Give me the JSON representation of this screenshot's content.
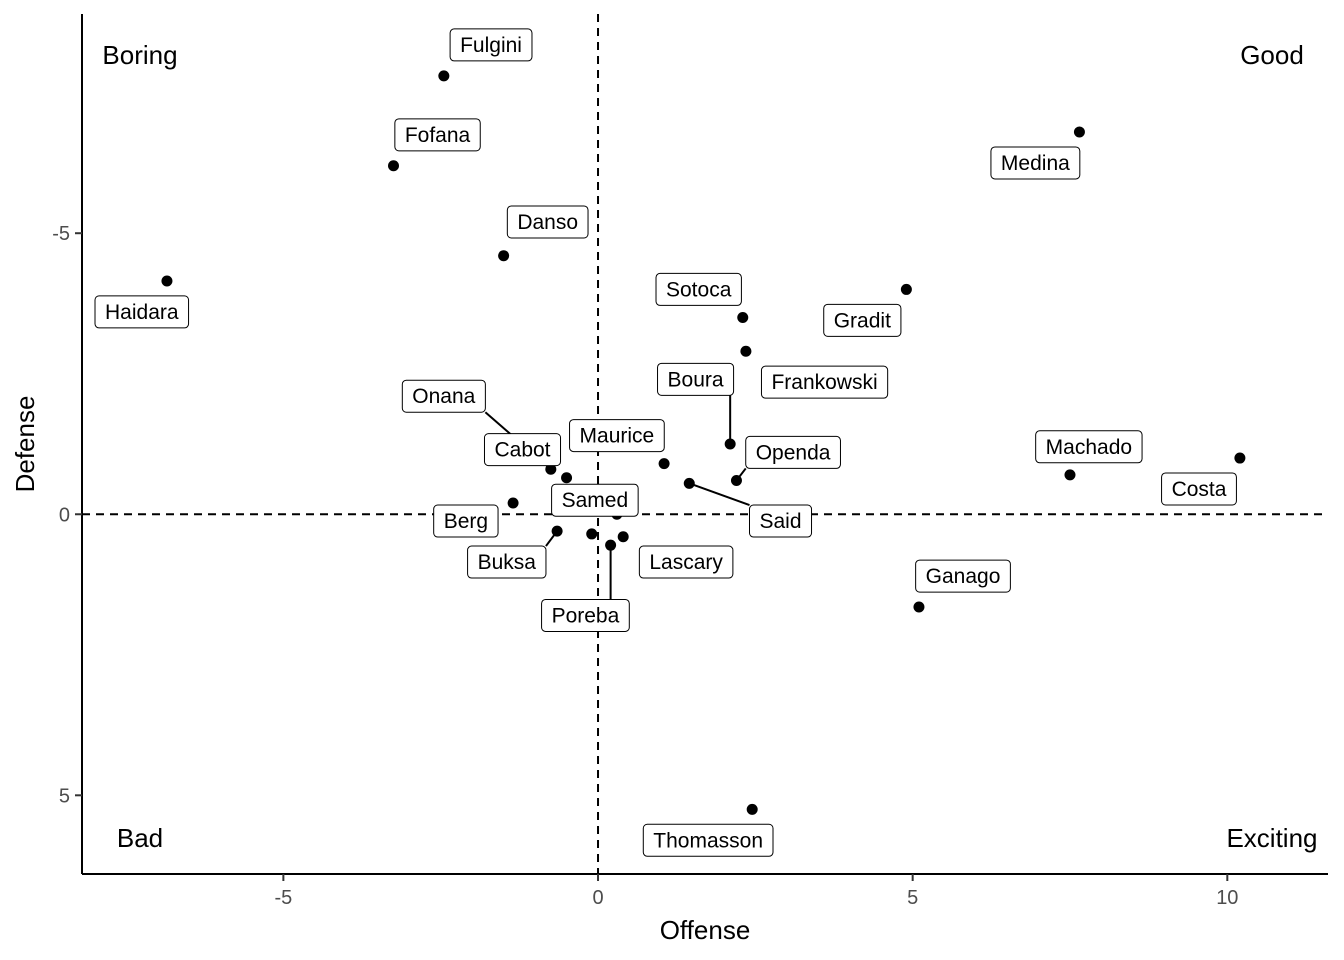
{
  "chart_data": {
    "type": "scatter",
    "xlabel": "Offense",
    "ylabel": "Defense",
    "xlim": [
      -8.2,
      11.6
    ],
    "ylim": [
      -8.9,
      6.4
    ],
    "y_reversed": true,
    "grid": false,
    "x_ticks": [
      -5,
      0,
      5,
      10
    ],
    "y_ticks": [
      -5,
      0,
      5
    ],
    "x_tick_labels": [
      "-5",
      "0",
      "5",
      "10"
    ],
    "y_tick_labels": [
      "-5",
      "0",
      "5"
    ],
    "reference_lines": [
      {
        "axis": "x",
        "value": 0,
        "style": "dashed"
      },
      {
        "axis": "y",
        "value": 0,
        "style": "dashed"
      }
    ],
    "quadrant_labels": [
      {
        "text": "Boring",
        "corner": "top-left"
      },
      {
        "text": "Good",
        "corner": "top-right"
      },
      {
        "text": "Bad",
        "corner": "bottom-left"
      },
      {
        "text": "Exciting",
        "corner": "bottom-right"
      }
    ],
    "points": [
      {
        "name": "Fulgini",
        "x": -2.45,
        "y": -7.8
      },
      {
        "name": "Fofana",
        "x": -3.25,
        "y": -6.2
      },
      {
        "name": "Danso",
        "x": -1.5,
        "y": -4.6
      },
      {
        "name": "Haidara",
        "x": -6.85,
        "y": -4.15
      },
      {
        "name": "Medina",
        "x": 7.65,
        "y": -6.8
      },
      {
        "name": "Sotoca",
        "x": 2.3,
        "y": -3.5
      },
      {
        "name": "Gradit",
        "x": 4.9,
        "y": -4.0
      },
      {
        "name": "Frankowski",
        "x": 2.35,
        "y": -2.9
      },
      {
        "name": "Boura",
        "x": 2.1,
        "y": -1.25
      },
      {
        "name": "Openda",
        "x": 2.2,
        "y": -0.6
      },
      {
        "name": "Onana",
        "x": -0.75,
        "y": -0.8
      },
      {
        "name": "Cabot",
        "x": -0.5,
        "y": -0.65
      },
      {
        "name": "Maurice",
        "x": 1.05,
        "y": -0.9
      },
      {
        "name": "Said",
        "x": 1.45,
        "y": -0.55
      },
      {
        "name": "Samed",
        "x": 0.3,
        "y": 0.0
      },
      {
        "name": "Berg",
        "x": -1.35,
        "y": -0.2
      },
      {
        "name": "Buksa",
        "x": -0.65,
        "y": 0.3
      },
      {
        "name": "Lascary",
        "x": 0.4,
        "y": 0.4
      },
      {
        "name": "Poreba",
        "x": 0.2,
        "y": 0.55
      },
      {
        "name": "",
        "x": -0.1,
        "y": 0.35
      },
      {
        "name": "Machado",
        "x": 7.5,
        "y": -0.7
      },
      {
        "name": "Costa",
        "x": 10.2,
        "y": -1.0
      },
      {
        "name": "Ganago",
        "x": 5.1,
        "y": 1.65
      },
      {
        "name": "Thomasson",
        "x": 2.45,
        "y": 5.25
      }
    ],
    "labels": [
      {
        "text": "Fulgini",
        "x": -1.7,
        "y": -8.35,
        "point": 0
      },
      {
        "text": "Fofana",
        "x": -2.55,
        "y": -6.75,
        "point": 1
      },
      {
        "text": "Danso",
        "x": -0.8,
        "y": -5.2,
        "point": 2
      },
      {
        "text": "Haidara",
        "x": -7.25,
        "y": -3.6,
        "point": 3
      },
      {
        "text": "Medina",
        "x": 6.95,
        "y": -6.25,
        "point": 4
      },
      {
        "text": "Sotoca",
        "x": 1.6,
        "y": -4.0,
        "point": 5
      },
      {
        "text": "Gradit",
        "x": 4.2,
        "y": -3.45,
        "point": 6
      },
      {
        "text": "Frankowski",
        "x": 3.6,
        "y": -2.35,
        "point": 7
      },
      {
        "text": "Boura",
        "x": 1.55,
        "y": -2.4,
        "point": 8,
        "leader": true
      },
      {
        "text": "Openda",
        "x": 3.1,
        "y": -1.1,
        "point": 9,
        "leader": true
      },
      {
        "text": "Onana",
        "x": -2.45,
        "y": -2.1,
        "point": 10,
        "leader": true
      },
      {
        "text": "Cabot",
        "x": -1.2,
        "y": -1.15,
        "point": 11
      },
      {
        "text": "Maurice",
        "x": 0.3,
        "y": -1.4,
        "point": 12
      },
      {
        "text": "Said",
        "x": 2.9,
        "y": 0.12,
        "point": 13,
        "leader": true
      },
      {
        "text": "Samed",
        "x": -0.05,
        "y": -0.25,
        "point": 14
      },
      {
        "text": "Berg",
        "x": -2.1,
        "y": 0.12,
        "point": 15
      },
      {
        "text": "Buksa",
        "x": -1.45,
        "y": 0.85,
        "point": 16,
        "leader": true
      },
      {
        "text": "Lascary",
        "x": 1.4,
        "y": 0.85,
        "point": 17
      },
      {
        "text": "Poreba",
        "x": -0.2,
        "y": 1.8,
        "point": 18,
        "leader": true
      },
      {
        "text": "Machado",
        "x": 7.8,
        "y": -1.2,
        "point": 20
      },
      {
        "text": "Costa",
        "x": 9.55,
        "y": -0.45,
        "point": 21
      },
      {
        "text": "Ganago",
        "x": 5.8,
        "y": 1.1,
        "point": 22
      },
      {
        "text": "Thomasson",
        "x": 1.75,
        "y": 5.8,
        "point": 23
      }
    ]
  }
}
